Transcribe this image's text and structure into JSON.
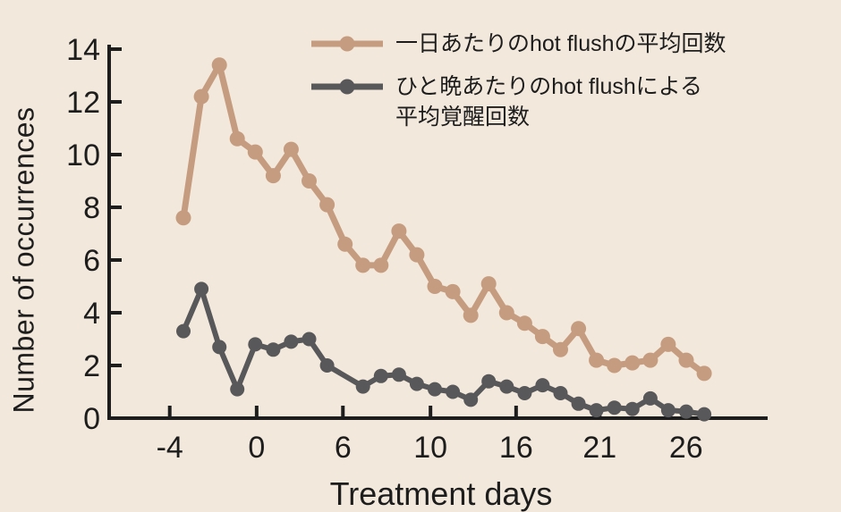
{
  "colors": {
    "background": "#f2e8db",
    "axis": "#1d1d1d",
    "text": "#1d1d1d",
    "series_day": "#c59c7f",
    "series_night": "#58585a"
  },
  "legend": {
    "item1_label": "一日あたりのhot flushの平均回数",
    "item2_line1": "ひと晩あたりのhot flushによる",
    "item2_line2": "平均覚醒回数"
  },
  "chart_data": {
    "type": "line",
    "title": "",
    "xlabel": "Treatment days",
    "ylabel": "Number of occurrences",
    "ylim": [
      0,
      14
    ],
    "grid": false,
    "legend_position": "top-center",
    "y_ticks": [
      0,
      2,
      4,
      6,
      8,
      10,
      12,
      14
    ],
    "x_ticks": [
      {
        "label": "-4",
        "pos": 0.092
      },
      {
        "label": "0",
        "pos": 0.224
      },
      {
        "label": "6",
        "pos": 0.355
      },
      {
        "label": "10",
        "pos": 0.488
      },
      {
        "label": "16",
        "pos": 0.618
      },
      {
        "label": "21",
        "pos": 0.745
      },
      {
        "label": "26",
        "pos": 0.876
      }
    ],
    "point_layout": {
      "start_frac": 0.1128,
      "step_frac": 0.02727
    },
    "series": [
      {
        "name": "一日あたりのhot flushの平均回数",
        "color": "#c59c7f",
        "values": [
          7.6,
          12.2,
          13.4,
          10.6,
          10.1,
          9.2,
          10.2,
          9.0,
          8.1,
          6.6,
          5.8,
          5.8,
          7.1,
          6.2,
          5.0,
          4.8,
          3.9,
          5.1,
          4.0,
          3.6,
          3.1,
          2.6,
          3.4,
          2.2,
          2.0,
          2.1,
          2.2,
          2.8,
          2.2,
          1.7
        ]
      },
      {
        "name": "ひと晩あたりのhot flushによる平均覚醒回数",
        "color": "#58585a",
        "values": [
          3.3,
          4.9,
          2.7,
          1.1,
          2.8,
          2.6,
          2.9,
          3.0,
          2.0,
          null,
          1.2,
          1.6,
          1.65,
          1.3,
          1.1,
          1.0,
          0.7,
          1.4,
          1.2,
          0.95,
          1.25,
          0.95,
          0.55,
          0.3,
          0.4,
          0.35,
          0.75,
          0.3,
          0.25,
          0.15
        ]
      }
    ]
  }
}
